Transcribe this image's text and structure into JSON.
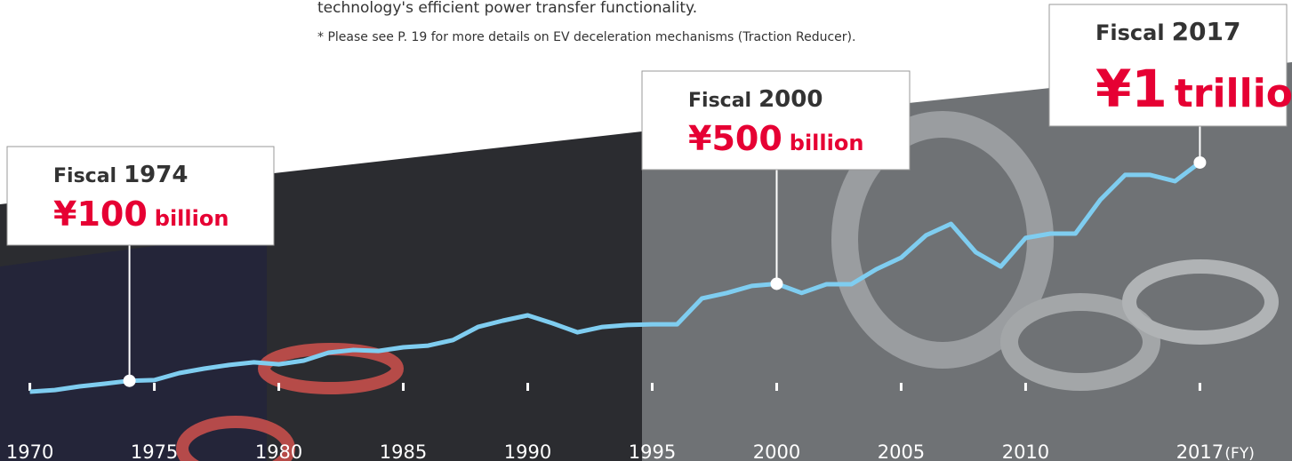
{
  "chart_data": {
    "type": "line",
    "notes": [
      "technology's efficient power transfer functionality.",
      "* Please see P. 19 for more details on EV deceleration mechanisms (Traction Reducer)."
    ],
    "x_label": "(FY)",
    "x": [
      1970,
      1971,
      1972,
      1973,
      1974,
      1975,
      1976,
      1977,
      1978,
      1979,
      1980,
      1981,
      1982,
      1983,
      1984,
      1985,
      1986,
      1987,
      1988,
      1989,
      1990,
      1991,
      1992,
      1993,
      1994,
      1995,
      1996,
      1997,
      1998,
      1999,
      2000,
      2001,
      2002,
      2003,
      2004,
      2005,
      2006,
      2007,
      2008,
      2009,
      2010,
      2011,
      2012,
      2013,
      2014,
      2015,
      2016,
      2017
    ],
    "values": [
      55,
      62,
      77,
      88,
      100,
      103,
      132,
      150,
      165,
      176,
      168,
      183,
      216,
      227,
      223,
      238,
      245,
      268,
      322,
      348,
      370,
      337,
      300,
      322,
      330,
      333,
      333,
      440,
      462,
      491,
      500,
      462,
      498,
      498,
      560,
      608,
      700,
      747,
      630,
      571,
      689,
      707,
      707,
      846,
      949,
      949,
      923,
      1000
    ],
    "color": "#7fcdf0",
    "xlim": [
      1968.8,
      2020.7
    ],
    "ylim": [
      0,
      1670
    ],
    "xticks": [
      1970,
      1975,
      1980,
      1985,
      1990,
      1995,
      2000,
      2005,
      2010,
      2017
    ],
    "annotations": [
      {
        "label": "Fiscal",
        "year": "1974",
        "amount": "¥100",
        "unit": "billion",
        "x": 1974,
        "value": 100
      },
      {
        "label": "Fiscal",
        "year": "2000",
        "amount": "¥500",
        "unit": "billion",
        "x": 2000,
        "value": 500
      },
      {
        "label": "Fiscal",
        "year": "2017",
        "amount": "¥1",
        "unit": "trillion",
        "x": 2017,
        "value": 1000
      }
    ]
  }
}
